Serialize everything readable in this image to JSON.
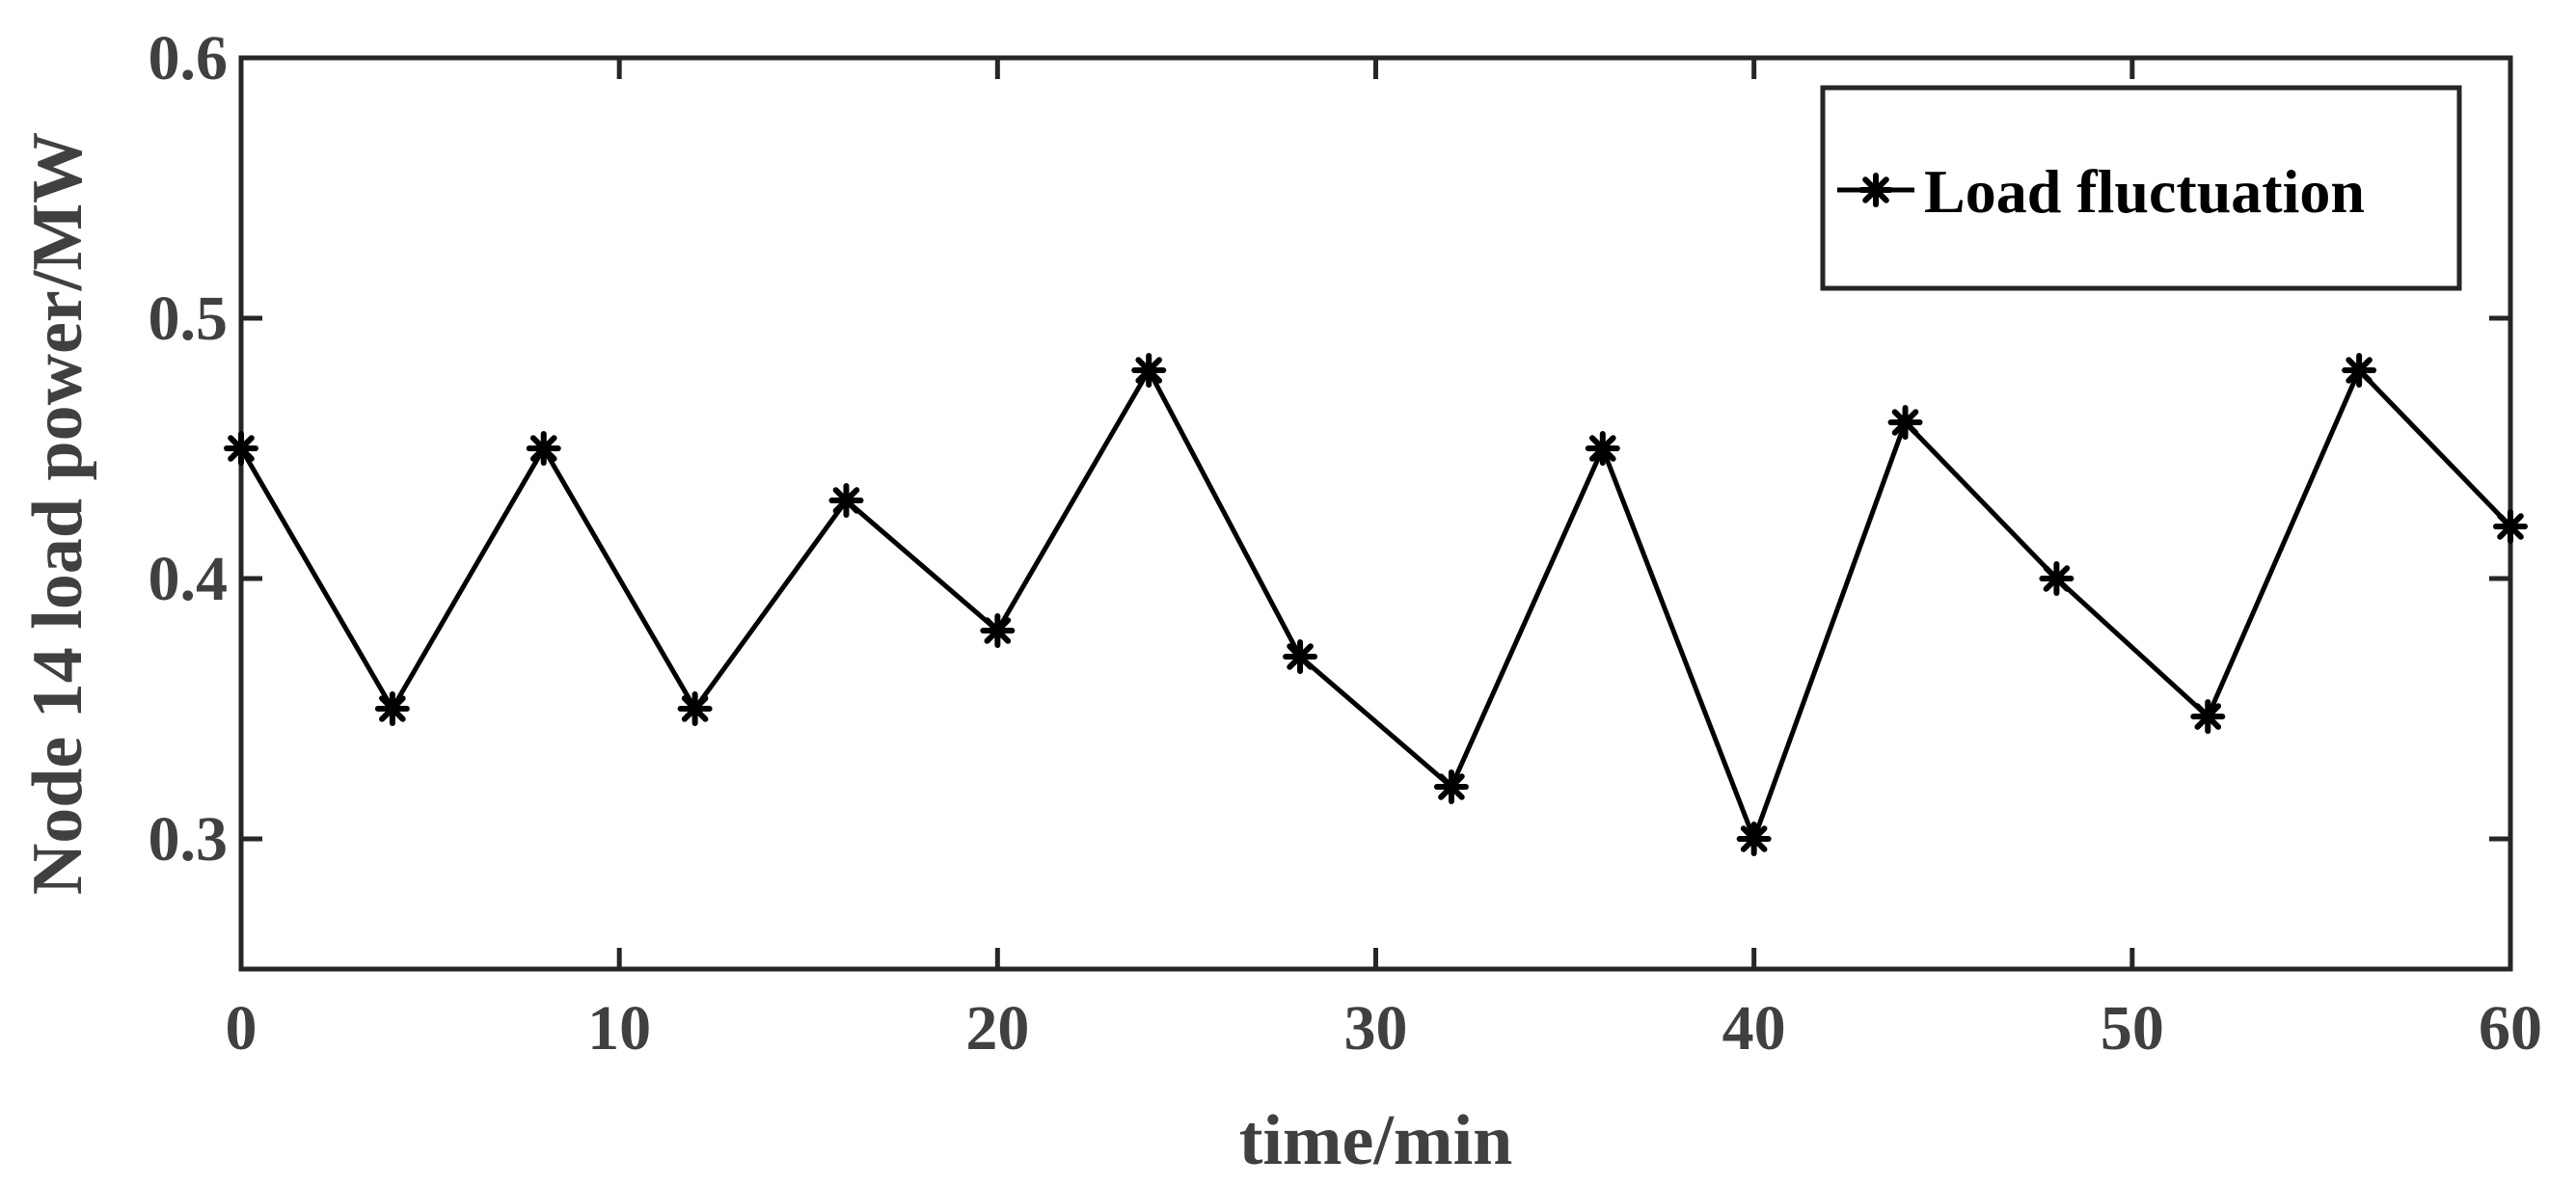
{
  "chart_data": {
    "type": "line",
    "xlabel": "time/min",
    "ylabel": "Node 14 load power/MW",
    "xlim": [
      0,
      60
    ],
    "ylim": [
      0.25,
      0.6
    ],
    "xticks": [
      0,
      10,
      20,
      30,
      40,
      50,
      60
    ],
    "xtick_labels": [
      "0",
      "10",
      "20",
      "30",
      "40",
      "50",
      "60"
    ],
    "yticks": [
      0.3,
      0.4,
      0.5,
      0.6
    ],
    "ytick_labels": [
      "0.3",
      "0.4",
      "0.5",
      "0.6"
    ],
    "grid": false,
    "legend_position": "top-right",
    "series": [
      {
        "name": "Load fluctuation",
        "marker": "asterisk",
        "color": "#000000",
        "x": [
          0,
          4,
          8,
          12,
          16,
          20,
          24,
          28,
          32,
          36,
          40,
          44,
          48,
          52,
          56,
          60
        ],
        "y": [
          0.45,
          0.35,
          0.45,
          0.35,
          0.43,
          0.38,
          0.48,
          0.37,
          0.32,
          0.45,
          0.3,
          0.46,
          0.4,
          0.347,
          0.48,
          0.42
        ]
      }
    ]
  }
}
